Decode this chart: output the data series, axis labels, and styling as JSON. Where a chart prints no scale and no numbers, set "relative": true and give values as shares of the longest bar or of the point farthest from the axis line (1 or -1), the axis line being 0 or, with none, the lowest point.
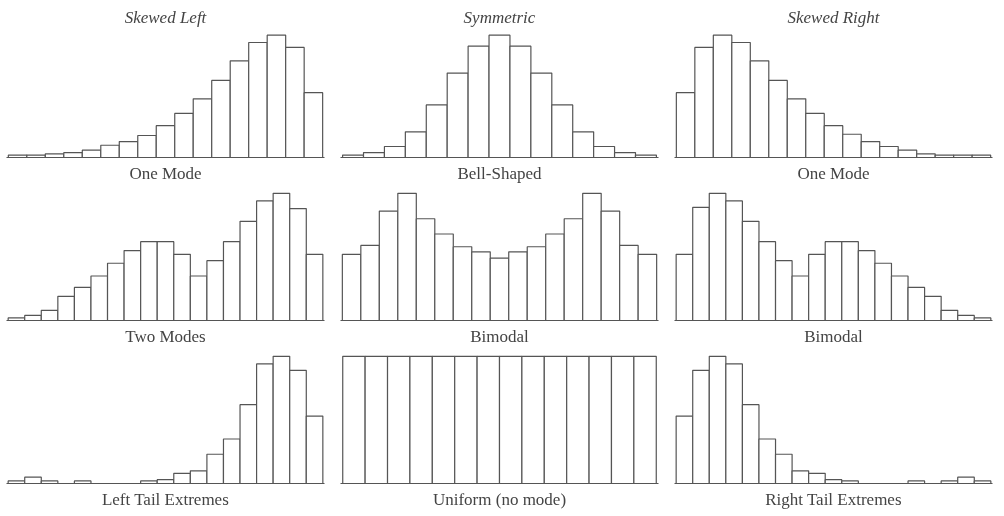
{
  "chart_data": [
    {
      "type": "bar",
      "title": "Skewed Left",
      "xlabel": "One Mode",
      "relative": true,
      "categories": [
        null,
        null,
        null,
        null,
        null,
        null,
        null,
        null,
        null,
        null,
        null,
        null,
        null,
        null,
        null,
        null,
        null
      ],
      "color": "#ffffff",
      "values": [
        0.02,
        0.02,
        0.03,
        0.04,
        0.06,
        0.1,
        0.13,
        0.18,
        0.26,
        0.36,
        0.48,
        0.63,
        0.79,
        0.94,
        1,
        0.9,
        0.53
      ]
    },
    {
      "type": "bar",
      "title": "Symmetric",
      "xlabel": "Bell-Shaped",
      "relative": true,
      "categories": [
        null,
        null,
        null,
        null,
        null,
        null,
        null,
        null,
        null,
        null,
        null,
        null,
        null,
        null,
        null
      ],
      "color": "#ffffff",
      "values": [
        0.02,
        0.04,
        0.09,
        0.21,
        0.43,
        0.69,
        0.91,
        1,
        0.91,
        0.69,
        0.43,
        0.21,
        0.09,
        0.04,
        0.02
      ]
    },
    {
      "type": "bar",
      "title": "Skewed Right",
      "xlabel": "One Mode",
      "relative": true,
      "categories": [
        null,
        null,
        null,
        null,
        null,
        null,
        null,
        null,
        null,
        null,
        null,
        null,
        null,
        null,
        null,
        null,
        null
      ],
      "color": "#ffffff",
      "values": [
        0.53,
        0.9,
        1,
        0.94,
        0.79,
        0.63,
        0.48,
        0.36,
        0.26,
        0.19,
        0.13,
        0.09,
        0.06,
        0.03,
        0.02,
        0.02,
        0.02
      ]
    },
    {
      "type": "bar",
      "xlabel": "Two Modes",
      "relative": true,
      "categories": [
        null,
        null,
        null,
        null,
        null,
        null,
        null,
        null,
        null,
        null,
        null,
        null,
        null,
        null,
        null,
        null,
        null,
        null,
        null
      ],
      "color": "#ffffff",
      "values": [
        0.02,
        0.04,
        0.08,
        0.19,
        0.26,
        0.35,
        0.45,
        0.55,
        0.62,
        0.62,
        0.52,
        0.35,
        0.47,
        0.62,
        0.78,
        0.94,
        1,
        0.88,
        0.52
      ]
    },
    {
      "type": "bar",
      "xlabel": "Bimodal",
      "relative": true,
      "categories": [
        null,
        null,
        null,
        null,
        null,
        null,
        null,
        null,
        null,
        null,
        null,
        null,
        null,
        null,
        null,
        null,
        null
      ],
      "color": "#ffffff",
      "values": [
        0.52,
        0.59,
        0.86,
        1,
        0.8,
        0.68,
        0.58,
        0.54,
        0.49,
        0.54,
        0.58,
        0.68,
        0.8,
        1,
        0.86,
        0.59,
        0.52
      ]
    },
    {
      "type": "bar",
      "xlabel": "Bimodal",
      "relative": true,
      "categories": [
        null,
        null,
        null,
        null,
        null,
        null,
        null,
        null,
        null,
        null,
        null,
        null,
        null,
        null,
        null,
        null,
        null,
        null,
        null
      ],
      "color": "#ffffff",
      "values": [
        0.52,
        0.89,
        1,
        0.94,
        0.78,
        0.62,
        0.47,
        0.35,
        0.52,
        0.62,
        0.62,
        0.55,
        0.45,
        0.35,
        0.26,
        0.19,
        0.08,
        0.04,
        0.02
      ]
    },
    {
      "type": "bar",
      "xlabel": "Left Tail Extremes",
      "relative": true,
      "categories": [
        null,
        null,
        null,
        null,
        null,
        null,
        null,
        null,
        null,
        null,
        null,
        null,
        null,
        null,
        null,
        null,
        null,
        null,
        null
      ],
      "color": "#ffffff",
      "values": [
        0.02,
        0.05,
        0.02,
        null,
        0.02,
        null,
        null,
        null,
        0.02,
        0.03,
        0.08,
        0.1,
        0.23,
        0.35,
        0.62,
        0.94,
        1,
        0.89,
        0.53
      ]
    },
    {
      "type": "bar",
      "xlabel": "Uniform (no mode)",
      "relative": true,
      "categories": [
        null,
        null,
        null,
        null,
        null,
        null,
        null,
        null,
        null,
        null,
        null,
        null,
        null,
        null
      ],
      "color": "#ffffff",
      "values": [
        1,
        1,
        1,
        1,
        1,
        1,
        1,
        1,
        1,
        1,
        1,
        1,
        1,
        1
      ]
    },
    {
      "type": "bar",
      "xlabel": "Right Tail Extremes",
      "relative": true,
      "categories": [
        null,
        null,
        null,
        null,
        null,
        null,
        null,
        null,
        null,
        null,
        null,
        null,
        null,
        null,
        null,
        null,
        null,
        null,
        null
      ],
      "color": "#ffffff",
      "values": [
        0.53,
        0.89,
        1,
        0.94,
        0.62,
        0.35,
        0.23,
        0.1,
        0.08,
        0.03,
        0.02,
        null,
        null,
        null,
        0.02,
        null,
        0.02,
        0.05,
        0.02
      ]
    }
  ]
}
